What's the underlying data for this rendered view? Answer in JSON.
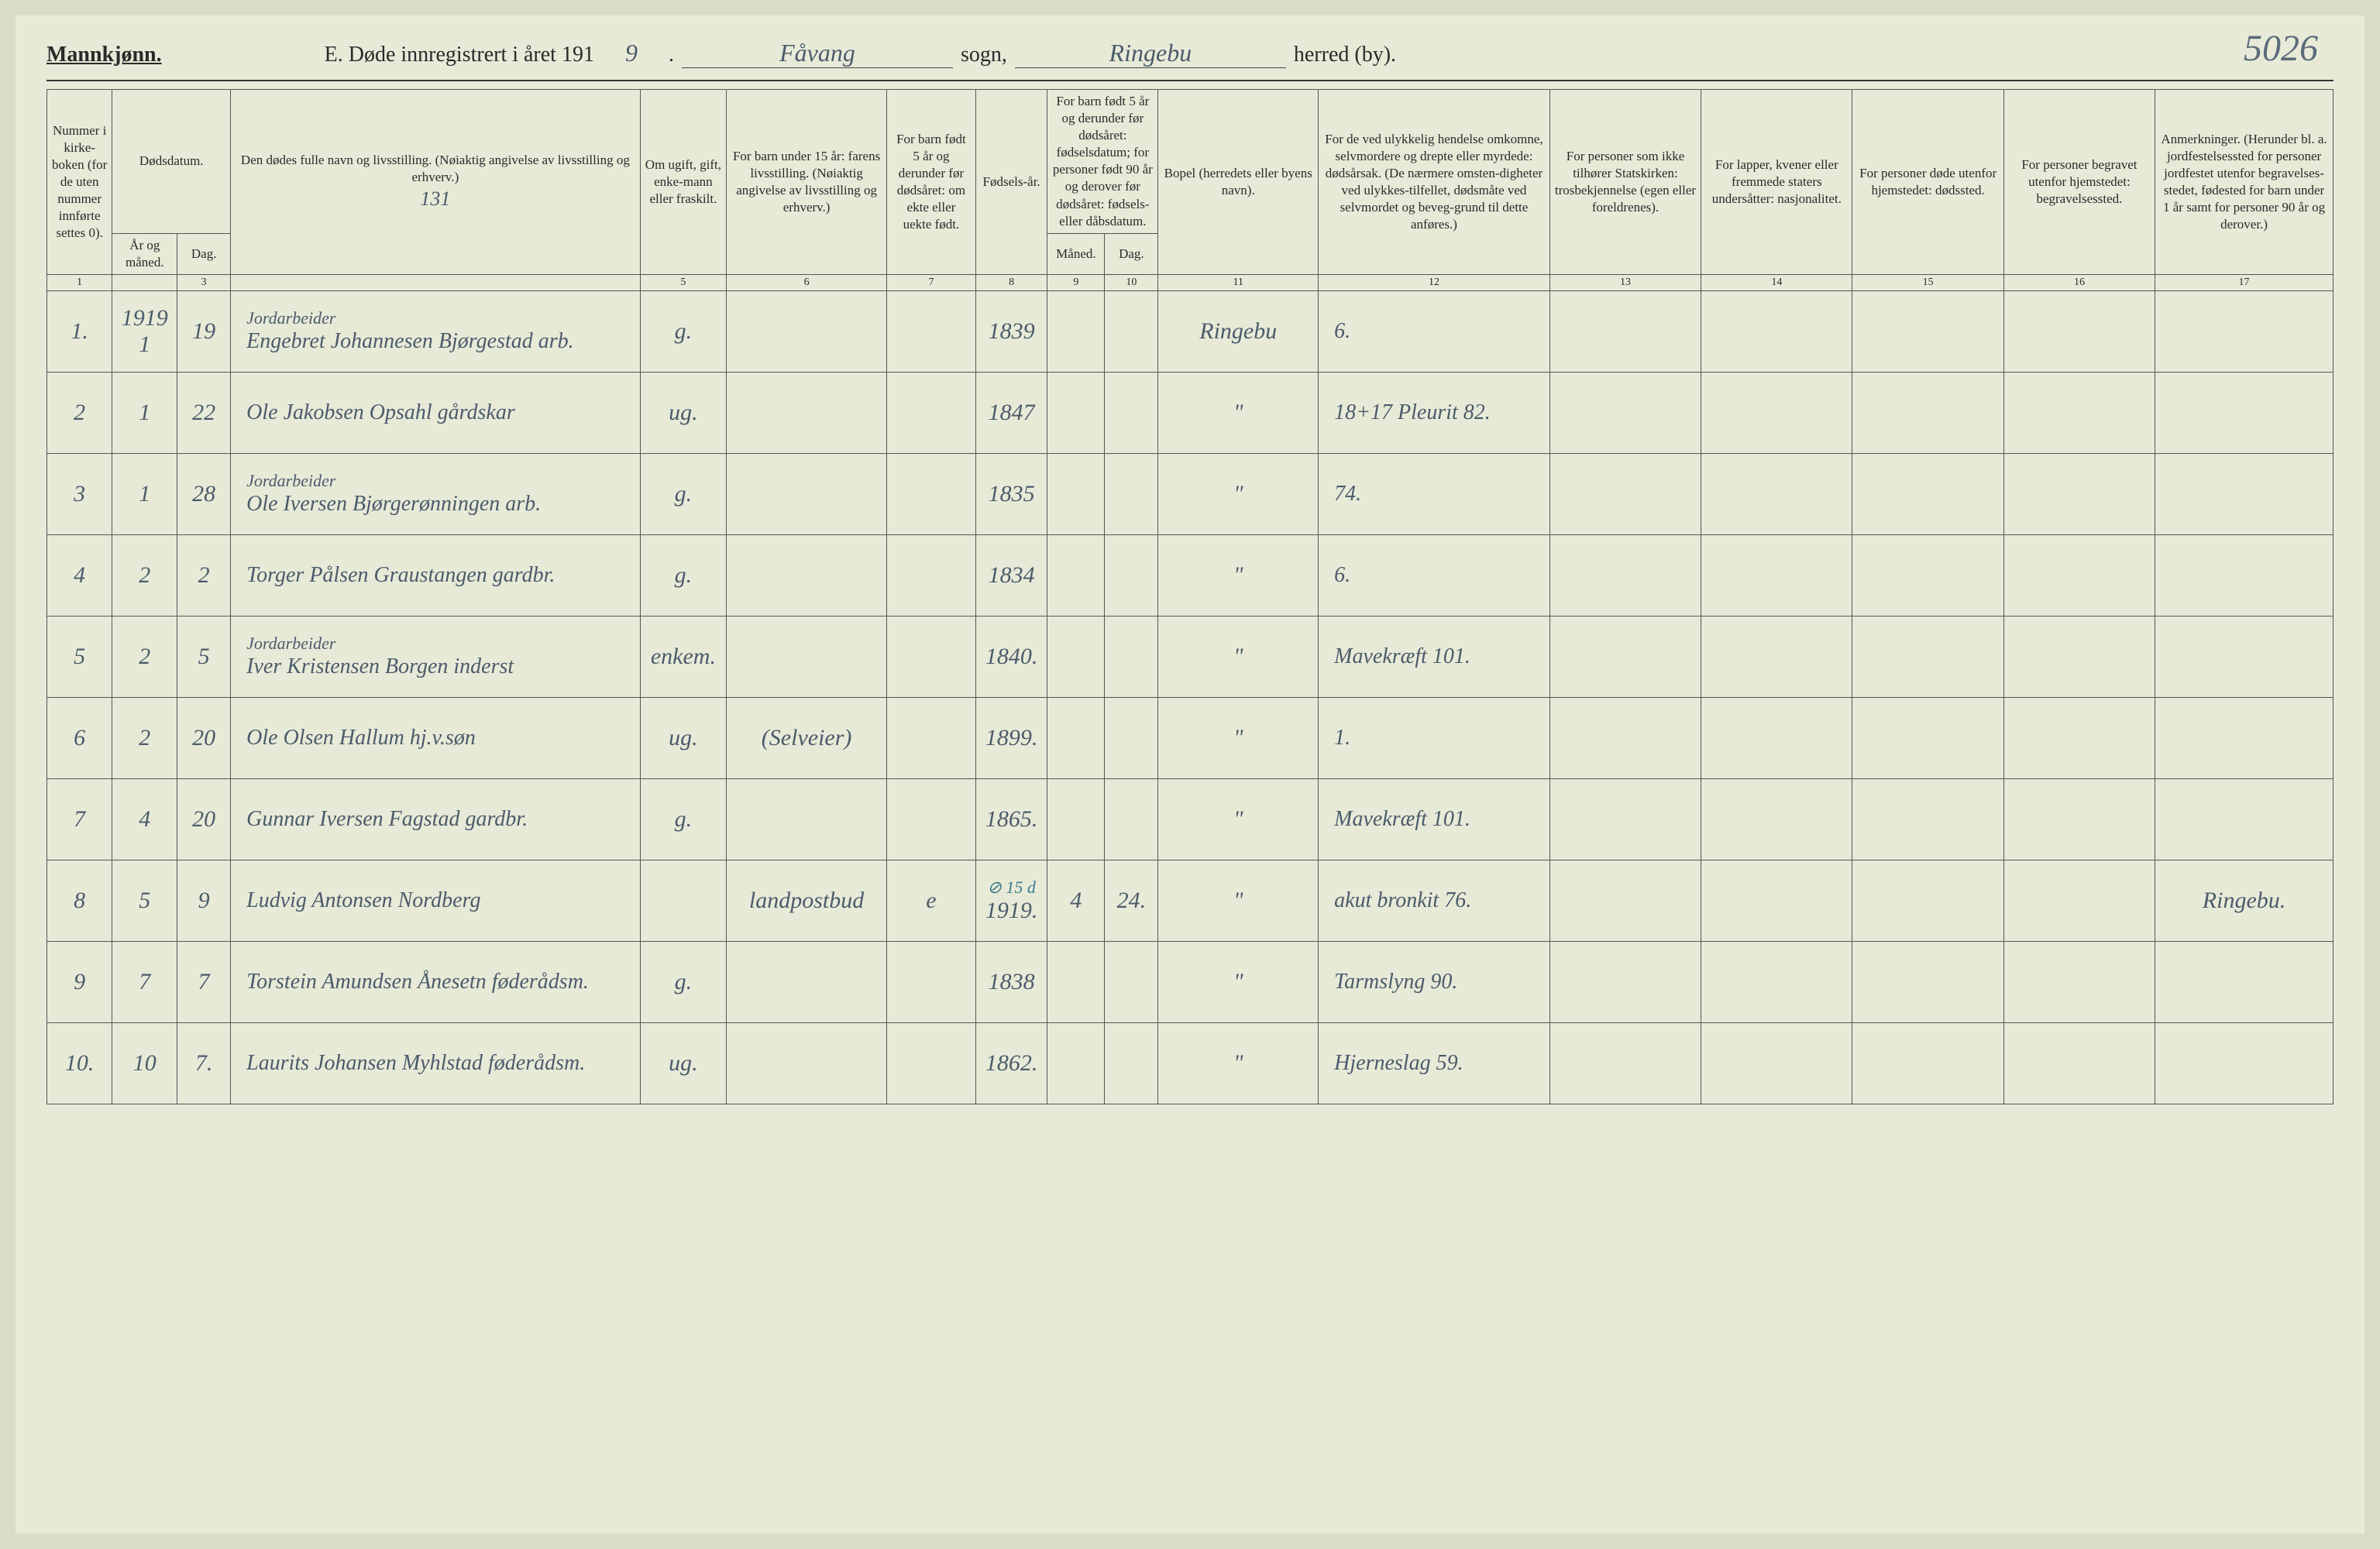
{
  "corner_number": "5026",
  "header": {
    "gender": "Mannkjønn.",
    "title_prefix": "E. Døde innregistrert i året 191",
    "year_suffix": "9",
    "period": ".",
    "sogn_value": "Fåvang",
    "sogn_label": "sogn,",
    "herred_value": "Ringebu",
    "herred_label": "herred (by)."
  },
  "columns": {
    "c1": "Nummer i kirke-boken (for de uten nummer innførte settes 0).",
    "c2a": "Dødsdatum.",
    "c2b_year": "År og måned.",
    "c2b_day": "Dag.",
    "c4": "Den dødes fulle navn og livsstilling. (Nøiaktig angivelse av livsstilling og erhverv.)",
    "c5": "Om ugift, gift, enke-mann eller fraskilt.",
    "c6": "For barn under 15 år: farens livsstilling. (Nøiaktig angivelse av livsstilling og erhverv.)",
    "c7": "For barn født 5 år og derunder før dødsåret: om ekte eller uekte født.",
    "c8": "Fødsels-år.",
    "c9_10": "For barn født 5 år og derunder før dødsåret: fødselsdatum; for personer født 90 år og derover før dødsåret: fødsels- eller dåbsdatum.",
    "c9": "Måned.",
    "c10": "Dag.",
    "c11": "Bopel (herredets eller byens navn).",
    "c12": "For de ved ulykkelig hendelse omkomne, selvmordere og drepte eller myrdede: dødsårsak. (De nærmere omsten-digheter ved ulykkes-tilfellet, dødsmåte ved selvmordet og beveg-grund til dette anføres.)",
    "c13": "For personer som ikke tilhører Statskirken: trosbekjennelse (egen eller foreldrenes).",
    "c14": "For lapper, kvener eller fremmede staters undersåtter: nasjonalitet.",
    "c15": "For personer døde utenfor hjemstedet: dødssted.",
    "c16": "For personer begravet utenfor hjemstedet: begravelsessted.",
    "c17": "Anmerkninger. (Herunder bl. a. jordfestelsessted for personer jordfestet utenfor begravelses-stedet, fødested for barn under 1 år samt for personer 90 år og derover.)"
  },
  "header_annotation": "131",
  "colnums": [
    "1",
    "",
    "3",
    "",
    "5",
    "6",
    "7",
    "8",
    "9",
    "10",
    "11",
    "12",
    "13",
    "14",
    "15",
    "16",
    "17"
  ],
  "rows": [
    {
      "num": "1.",
      "year": "1919\n1",
      "day": "19",
      "occupation": "Jordarbeider",
      "name": "Engebret Johannesen Bjørgestad arb.",
      "status": "g.",
      "father": "",
      "child5": "",
      "birth": "1839",
      "birthm": "",
      "birthd": "",
      "place": "Ringebu",
      "cause": "6.",
      "c13": "",
      "c14": "",
      "c15": "",
      "c16": "",
      "c17": ""
    },
    {
      "num": "2",
      "year": "1",
      "day": "22",
      "occupation": "",
      "name": "Ole Jakobsen Opsahl gårdskar",
      "status": "ug.",
      "father": "",
      "child5": "",
      "birth": "1847",
      "birthm": "",
      "birthd": "",
      "place": "\"",
      "cause": "18+17  Pleurit 82.",
      "c13": "",
      "c14": "",
      "c15": "",
      "c16": "",
      "c17": ""
    },
    {
      "num": "3",
      "year": "1",
      "day": "28",
      "occupation": "Jordarbeider",
      "name": "Ole Iversen Bjørgerønningen arb.",
      "status": "g.",
      "father": "",
      "child5": "",
      "birth": "1835",
      "birthm": "",
      "birthd": "",
      "place": "\"",
      "cause": "74.",
      "c13": "",
      "c14": "",
      "c15": "",
      "c16": "",
      "c17": ""
    },
    {
      "num": "4",
      "year": "2",
      "day": "2",
      "occupation": "",
      "name": "Torger Pålsen Graustangen gardbr.",
      "status": "g.",
      "father": "",
      "child5": "",
      "birth": "1834",
      "birthm": "",
      "birthd": "",
      "place": "\"",
      "cause": "6.",
      "c13": "",
      "c14": "",
      "c15": "",
      "c16": "",
      "c17": ""
    },
    {
      "num": "5",
      "year": "2",
      "day": "5",
      "occupation": "Jordarbeider",
      "name": "Iver Kristensen Borgen inderst",
      "status": "enkem.",
      "father": "",
      "child5": "",
      "birth": "1840.",
      "birthm": "",
      "birthd": "",
      "place": "\"",
      "cause": "Mavekræft 101.",
      "c13": "",
      "c14": "",
      "c15": "",
      "c16": "",
      "c17": ""
    },
    {
      "num": "6",
      "year": "2",
      "day": "20",
      "occupation": "",
      "name": "Ole Olsen Hallum hj.v.søn",
      "status": "ug.",
      "father": "(Selveier)",
      "child5": "",
      "birth": "1899.",
      "birthm": "",
      "birthd": "",
      "place": "\"",
      "cause": "1.",
      "c13": "",
      "c14": "",
      "c15": "",
      "c16": "",
      "c17": ""
    },
    {
      "num": "7",
      "year": "4",
      "day": "20",
      "occupation": "",
      "name": "Gunnar Iversen Fagstad gardbr.",
      "status": "g.",
      "father": "",
      "child5": "",
      "birth": "1865.",
      "birthm": "",
      "birthd": "",
      "place": "\"",
      "cause": "Mavekræft 101.",
      "c13": "",
      "c14": "",
      "c15": "",
      "c16": "",
      "c17": ""
    },
    {
      "num": "8",
      "year": "5",
      "day": "9",
      "occupation": "",
      "name": "Ludvig Antonsen Nordberg",
      "status": "",
      "father": "landpostbud",
      "child5": "e",
      "birth": "1919.",
      "birthm": "4",
      "birthd": "24.",
      "place": "\"",
      "cause": "akut bronkit 76.",
      "c13": "",
      "c14": "",
      "c15": "",
      "c16": "",
      "c17": "Ringebu.",
      "birth_annot": "⊘ 15 d"
    },
    {
      "num": "9",
      "year": "7",
      "day": "7",
      "occupation": "",
      "name": "Torstein Amundsen Ånesetn føderådsm.",
      "status": "g.",
      "father": "",
      "child5": "",
      "birth": "1838",
      "birthm": "",
      "birthd": "",
      "place": "\"",
      "cause": "Tarmslyng 90.",
      "c13": "",
      "c14": "",
      "c15": "",
      "c16": "",
      "c17": ""
    },
    {
      "num": "10.",
      "year": "10",
      "day": "7.",
      "occupation": "",
      "name": "Laurits Johansen Myhlstad føderådsm.",
      "status": "ug.",
      "father": "",
      "child5": "",
      "birth": "1862.",
      "birthm": "",
      "birthd": "",
      "place": "\"",
      "cause": "Hjerneslag 59.",
      "c13": "",
      "c14": "",
      "c15": "",
      "c16": "",
      "c17": ""
    }
  ]
}
